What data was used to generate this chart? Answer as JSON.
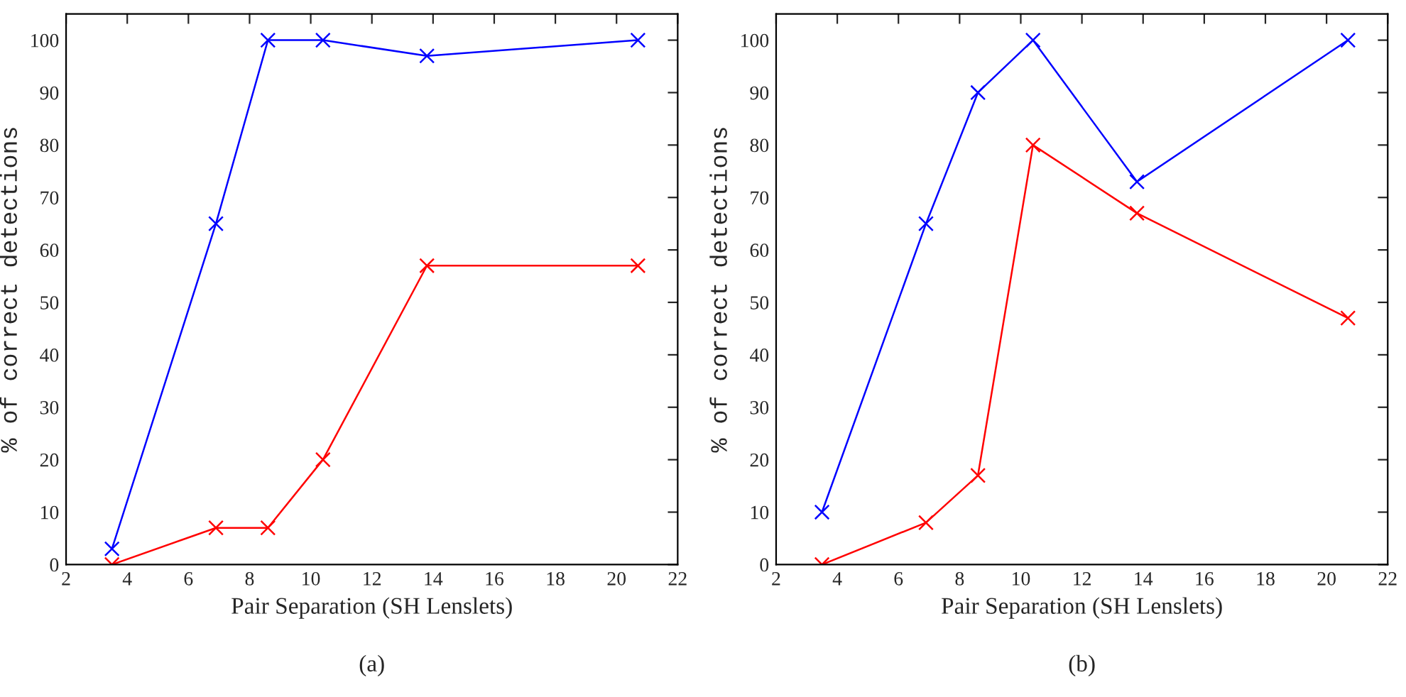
{
  "chart_data": [
    {
      "type": "line",
      "xlabel": "Pair Separation (SH Lenslets)",
      "ylabel": "% of correct detections",
      "annotations": [
        "(a)"
      ],
      "x": [
        3.5,
        6.9,
        8.6,
        10.4,
        13.8,
        20.7
      ],
      "series": [
        {
          "color": "#0000ff",
          "values": [
            3,
            65,
            100,
            100,
            97,
            100
          ]
        },
        {
          "color": "#ff0000",
          "values": [
            0,
            7,
            7,
            20,
            57,
            57
          ]
        }
      ],
      "xlim": [
        2,
        22
      ],
      "xticks": [
        2,
        4,
        6,
        8,
        10,
        12,
        14,
        16,
        18,
        20,
        22
      ],
      "ylim": [
        0,
        105
      ],
      "yticks": [
        0,
        10,
        20,
        30,
        40,
        50,
        60,
        70,
        80,
        90,
        100
      ],
      "marker": "cross",
      "line_style": "solid",
      "grid": false,
      "legend": false
    },
    {
      "type": "line",
      "xlabel": "Pair Separation (SH Lenslets)",
      "ylabel": "% of correct detections",
      "annotations": [
        "(b)"
      ],
      "x": [
        3.5,
        6.9,
        8.6,
        10.4,
        13.8,
        20.7
      ],
      "series": [
        {
          "color": "#0000ff",
          "values": [
            10,
            65,
            90,
            100,
            73,
            100
          ]
        },
        {
          "color": "#ff0000",
          "values": [
            0,
            8,
            17,
            80,
            67,
            47
          ]
        }
      ],
      "xlim": [
        2,
        22
      ],
      "xticks": [
        2,
        4,
        6,
        8,
        10,
        12,
        14,
        16,
        18,
        20,
        22
      ],
      "ylim": [
        0,
        105
      ],
      "yticks": [
        0,
        10,
        20,
        30,
        40,
        50,
        60,
        70,
        80,
        90,
        100
      ],
      "marker": "cross",
      "line_style": "solid",
      "grid": false,
      "legend": false
    }
  ]
}
